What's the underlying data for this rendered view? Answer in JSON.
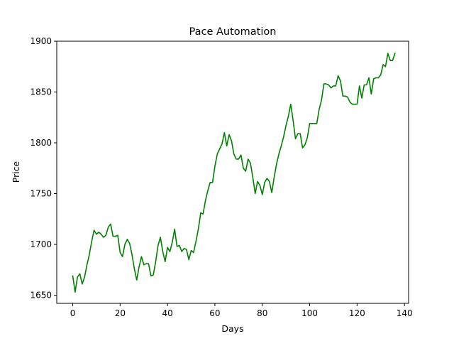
{
  "chart_data": {
    "type": "line",
    "title": "Pace Automation",
    "xlabel": "Days",
    "ylabel": "Price",
    "xlim": [
      -6.75,
      141.75
    ],
    "ylim": [
      1642,
      1900
    ],
    "x_ticks": [
      0,
      20,
      40,
      60,
      80,
      100,
      120,
      140
    ],
    "y_ticks": [
      1650,
      1700,
      1750,
      1800,
      1850,
      1900
    ],
    "grid": false,
    "series": [
      {
        "color": "#008000",
        "values": [
          1669,
          1653,
          1668,
          1671,
          1661,
          1668,
          1680,
          1690,
          1703,
          1714,
          1710,
          1712,
          1710,
          1707,
          1709,
          1717,
          1720,
          1708,
          1708,
          1709,
          1692,
          1688,
          1700,
          1705,
          1701,
          1690,
          1676,
          1665,
          1678,
          1688,
          1680,
          1681,
          1681,
          1669,
          1670,
          1683,
          1699,
          1707,
          1693,
          1683,
          1697,
          1693,
          1702,
          1715,
          1698,
          1699,
          1693,
          1696,
          1695,
          1685,
          1694,
          1692,
          1703,
          1715,
          1731,
          1730,
          1743,
          1753,
          1761,
          1761,
          1777,
          1789,
          1794,
          1799,
          1810,
          1797,
          1808,
          1802,
          1789,
          1784,
          1784,
          1788,
          1775,
          1772,
          1784,
          1780,
          1766,
          1750,
          1762,
          1758,
          1749,
          1761,
          1765,
          1762,
          1751,
          1766,
          1779,
          1789,
          1797,
          1806,
          1817,
          1826,
          1838,
          1822,
          1804,
          1809,
          1809,
          1795,
          1798,
          1805,
          1819,
          1819,
          1819,
          1819,
          1833,
          1842,
          1858,
          1858,
          1857,
          1854,
          1856,
          1856,
          1866,
          1861,
          1846,
          1846,
          1845,
          1840,
          1838,
          1838,
          1838,
          1856,
          1844,
          1857,
          1857,
          1864,
          1848,
          1863,
          1864,
          1864,
          1867,
          1877,
          1875,
          1888,
          1881,
          1881,
          1888
        ]
      }
    ]
  }
}
